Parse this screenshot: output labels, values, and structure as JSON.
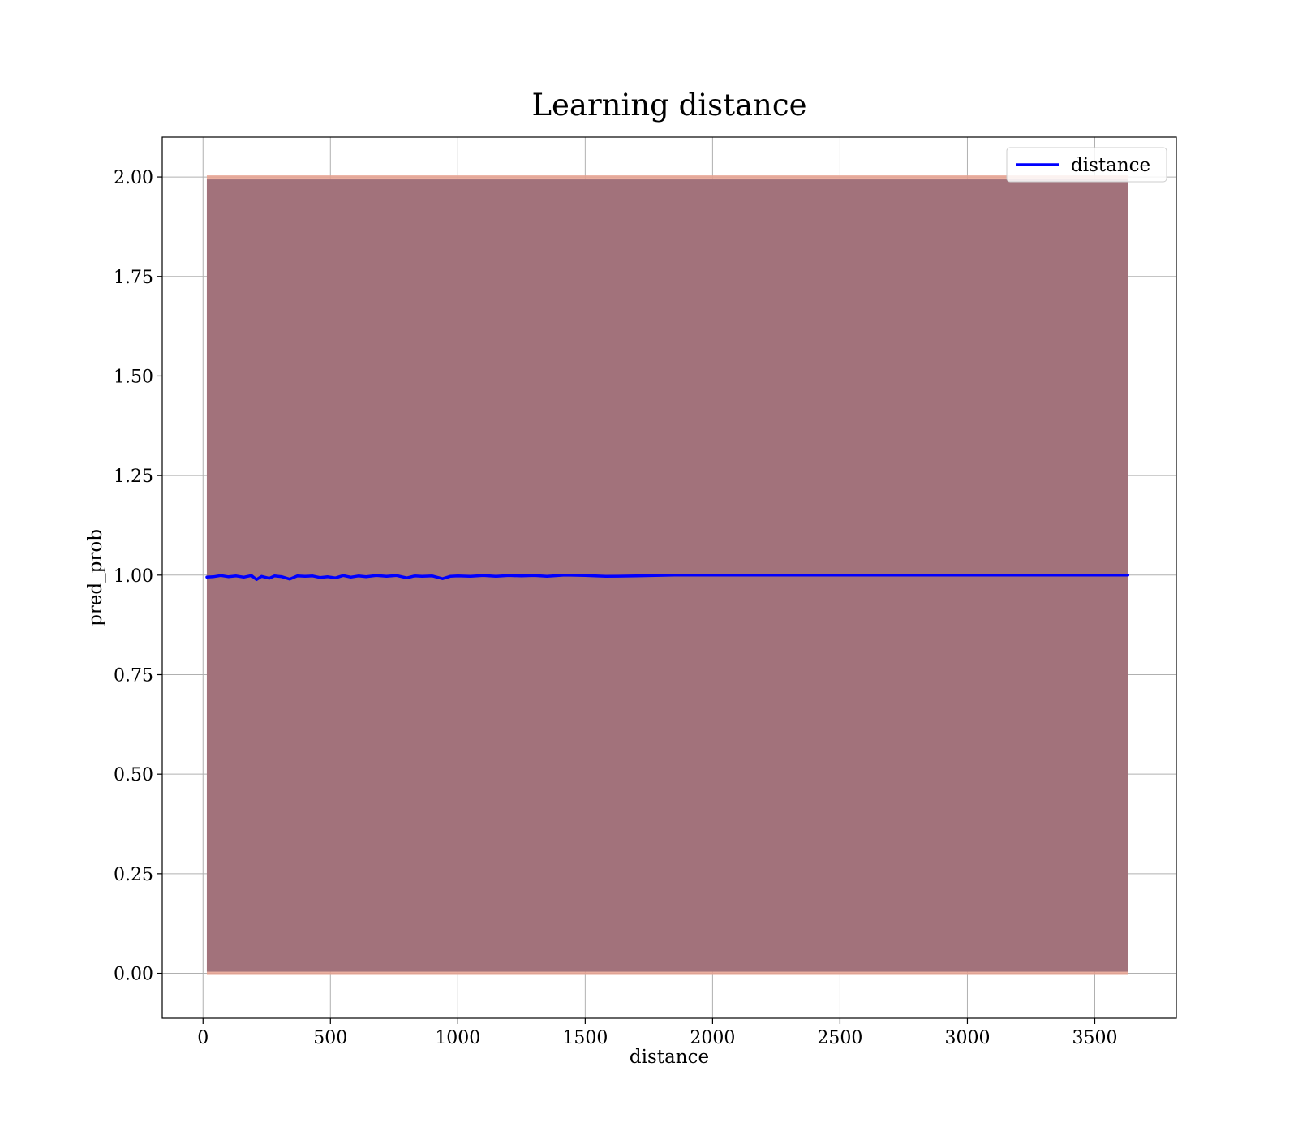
{
  "chart_data": {
    "type": "line",
    "title": "Learning distance",
    "xlabel": "distance",
    "ylabel": "pred_prob",
    "xlim": [
      -160,
      3820
    ],
    "ylim": [
      -0.113,
      2.1
    ],
    "xticks": [
      0,
      500,
      1000,
      1500,
      2000,
      2500,
      3000,
      3500
    ],
    "xtick_labels": [
      "0",
      "500",
      "1000",
      "1500",
      "2000",
      "2500",
      "3000",
      "3500"
    ],
    "yticks": [
      0,
      0.25,
      0.5,
      0.75,
      1.0,
      1.25,
      1.5,
      1.75,
      2.0
    ],
    "ytick_labels": [
      "0.00",
      "0.25",
      "0.50",
      "0.75",
      "1.00",
      "1.25",
      "1.50",
      "1.75",
      "2.00"
    ],
    "grid": true,
    "legend_position": "top-right",
    "series": [
      {
        "name": "distance",
        "color": "#0000ff",
        "x": [
          15,
          40,
          70,
          100,
          130,
          160,
          190,
          210,
          230,
          260,
          280,
          310,
          340,
          370,
          400,
          430,
          460,
          490,
          520,
          550,
          580,
          610,
          640,
          680,
          720,
          760,
          800,
          830,
          860,
          900,
          940,
          970,
          1000,
          1050,
          1100,
          1150,
          1200,
          1250,
          1300,
          1350,
          1420,
          1500,
          1580,
          1700,
          1850,
          2000,
          2500,
          3000,
          3630
        ],
        "values": [
          0.995,
          0.996,
          0.999,
          0.996,
          0.998,
          0.995,
          0.999,
          0.989,
          0.997,
          0.992,
          0.998,
          0.996,
          0.99,
          0.998,
          0.997,
          0.998,
          0.994,
          0.996,
          0.993,
          0.999,
          0.995,
          0.998,
          0.996,
          0.999,
          0.997,
          0.999,
          0.993,
          0.998,
          0.997,
          0.998,
          0.991,
          0.997,
          0.998,
          0.997,
          0.999,
          0.997,
          0.999,
          0.998,
          0.999,
          0.997,
          1.0,
          0.999,
          0.997,
          0.998,
          1.0,
          1.0,
          1.0,
          1.0,
          1.0
        ]
      }
    ],
    "band": {
      "x": [
        15,
        3630
      ],
      "lower": [
        0,
        0
      ],
      "upper": [
        2,
        2
      ],
      "fill_color": "#a2727b",
      "edge_color": "#e7a18f"
    }
  }
}
